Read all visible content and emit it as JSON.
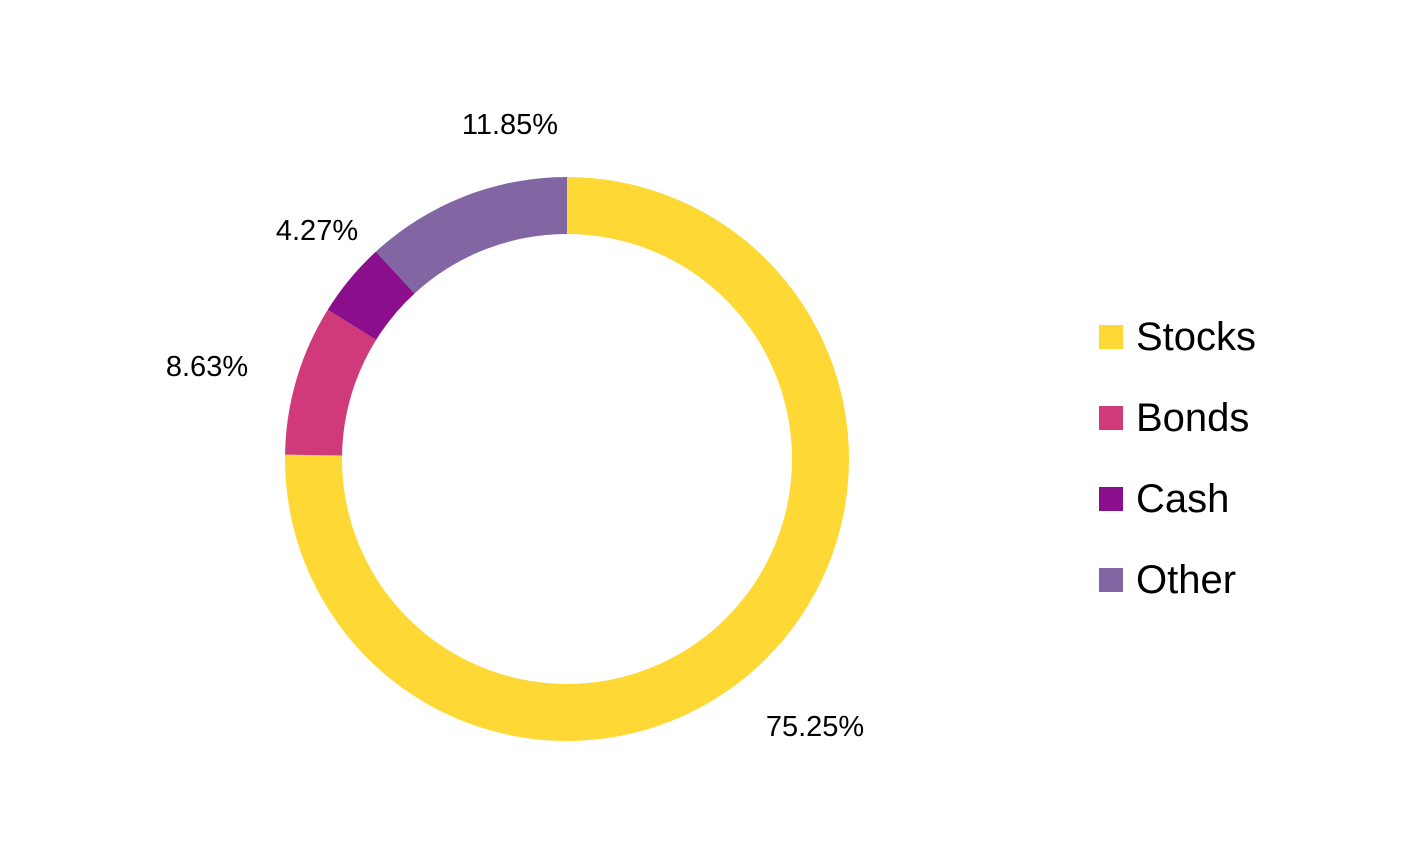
{
  "chart_data": {
    "type": "pie",
    "variant": "donut",
    "start_angle_deg": 0,
    "direction": "clockwise",
    "legend_position": "right",
    "slices": [
      {
        "name": "Stocks",
        "value": 75.25,
        "label": "75.25%",
        "color": "#FED834"
      },
      {
        "name": "Bonds",
        "value": 8.63,
        "label": "8.63%",
        "color": "#D13A7A"
      },
      {
        "name": "Cash",
        "value": 4.27,
        "label": "4.27%",
        "color": "#8B0F8D"
      },
      {
        "name": "Other",
        "value": 11.85,
        "label": "11.85%",
        "color": "#8266A3"
      }
    ]
  }
}
